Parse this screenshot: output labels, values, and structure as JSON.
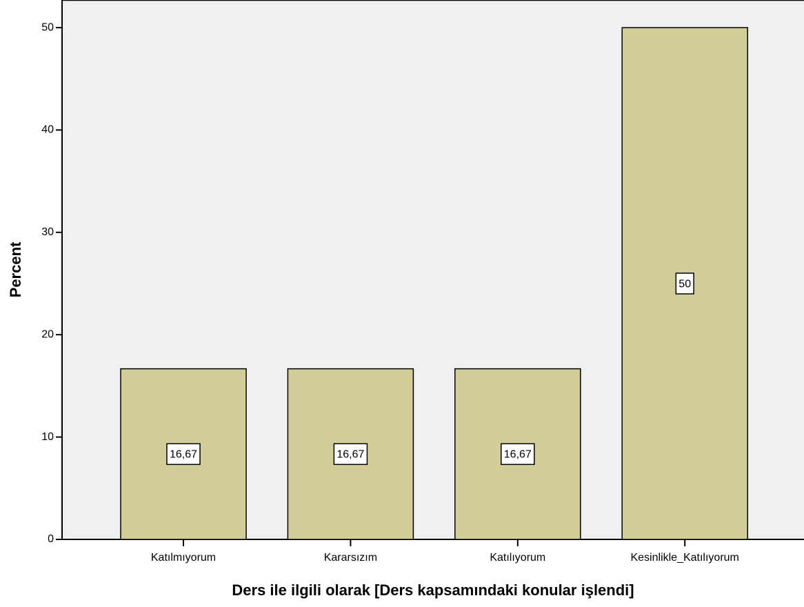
{
  "chart_data": {
    "type": "bar",
    "categories": [
      "Katılmıyorum",
      "Kararsızım",
      "Katılıyorum",
      "Kesinlikle_Katılıyorum"
    ],
    "values": [
      16.67,
      16.67,
      16.67,
      50
    ],
    "value_labels": [
      "16,67",
      "16,67",
      "16,67",
      "50"
    ],
    "color": "#d3ce97",
    "x_label": "Ders ile ilgili olarak [Ders kapsamındaki konular işlendi]",
    "y_label": "Percent",
    "ylim": [
      0,
      52.7
    ],
    "yticks": [
      0,
      10,
      20,
      30,
      40,
      50
    ],
    "grid": false
  }
}
